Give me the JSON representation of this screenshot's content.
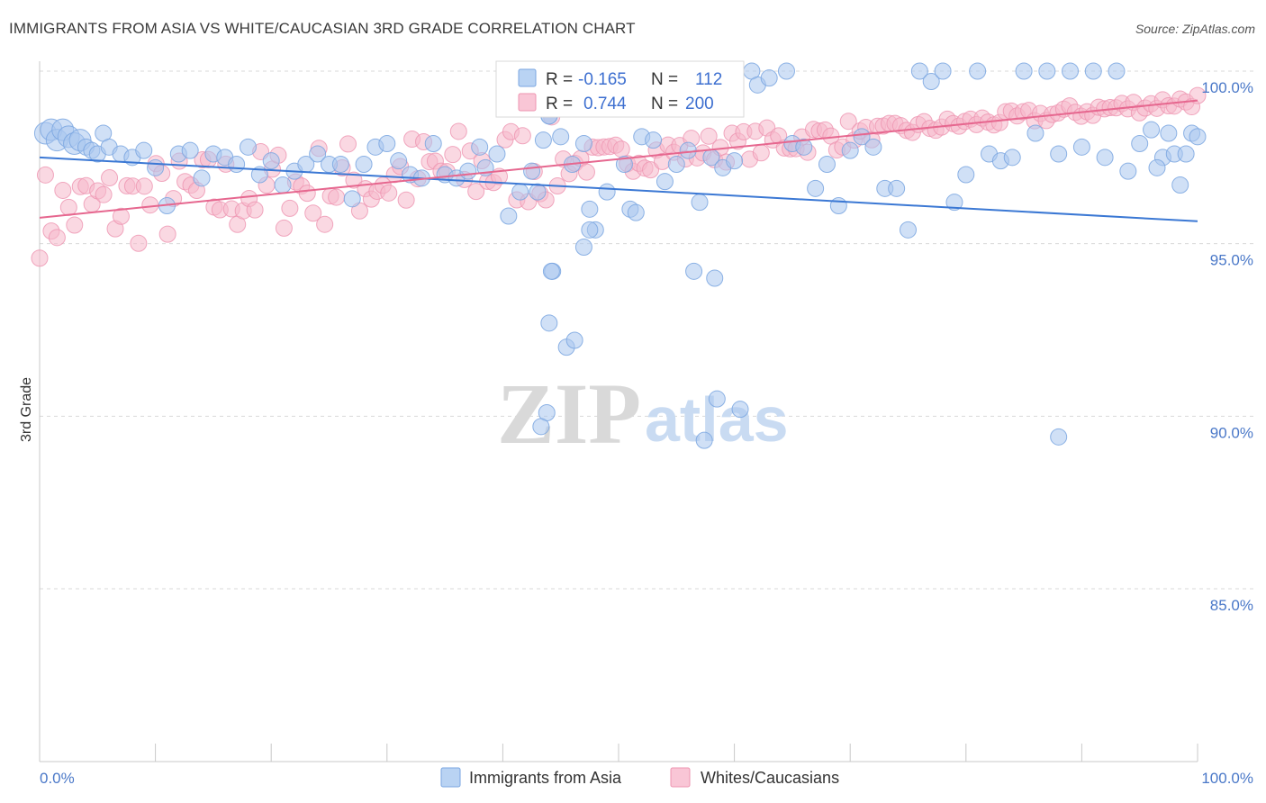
{
  "title": "IMMIGRANTS FROM ASIA VS WHITE/CAUCASIAN 3RD GRADE CORRELATION CHART",
  "source": "Source: ZipAtlas.com",
  "watermark": {
    "zip": "ZIP",
    "atlas": "atlas"
  },
  "colors": {
    "blue_fill": "#a9c7ee",
    "blue_stroke": "#7aa6e0",
    "blue_line": "#3b78d4",
    "pink_fill": "#f6b8cb",
    "pink_stroke": "#ee94b0",
    "pink_line": "#e6678f",
    "grid": "#d9d9d9",
    "axis_text": "#4a78c8"
  },
  "legend_top": {
    "series": [
      {
        "r_label": "R =",
        "r_value": "-0.165",
        "n_label": "N =",
        "n_value": "112"
      },
      {
        "r_label": "R =",
        "r_value": "0.744",
        "n_label": "N =",
        "n_value": "200"
      }
    ]
  },
  "legend_bottom": [
    "Immigrants from Asia",
    "Whites/Caucasians"
  ],
  "chart_data": {
    "type": "scatter",
    "xlabel": "",
    "ylabel": "3rd Grade",
    "xlim": [
      0,
      100
    ],
    "ylim": [
      80.5,
      100.8
    ],
    "x_tick_labels": [
      "0.0%",
      "100.0%"
    ],
    "y_ticks": [
      85,
      90,
      95,
      100
    ],
    "y_tick_labels": [
      "85.0%",
      "90.0%",
      "95.0%",
      "100.0%"
    ],
    "grid": true,
    "series": [
      {
        "name": "Immigrants from Asia",
        "r": -0.165,
        "n": 112,
        "trend": {
          "x": [
            0,
            100
          ],
          "y": [
            97.5,
            95.65
          ]
        },
        "points": [
          [
            0.5,
            98.2
          ],
          [
            1.0,
            98.3
          ],
          [
            1.5,
            98.0
          ],
          [
            2.0,
            98.3
          ],
          [
            2.5,
            98.1
          ],
          [
            3.0,
            97.9
          ],
          [
            3.5,
            98.0
          ],
          [
            4.0,
            97.8
          ],
          [
            4.5,
            97.7
          ],
          [
            5.0,
            97.6
          ],
          [
            5.5,
            98.2
          ],
          [
            6.0,
            97.8
          ],
          [
            7.0,
            97.6
          ],
          [
            8.0,
            97.5
          ],
          [
            9.0,
            97.7
          ],
          [
            10.0,
            97.2
          ],
          [
            11.0,
            96.1
          ],
          [
            12.0,
            97.6
          ],
          [
            13.0,
            97.7
          ],
          [
            14.0,
            96.9
          ],
          [
            15.0,
            97.6
          ],
          [
            16.0,
            97.5
          ],
          [
            17.0,
            97.3
          ],
          [
            18.0,
            97.8
          ],
          [
            19.0,
            97.0
          ],
          [
            20.0,
            97.4
          ],
          [
            21.0,
            96.7
          ],
          [
            22.0,
            97.1
          ],
          [
            23.0,
            97.3
          ],
          [
            24.0,
            97.6
          ],
          [
            25.0,
            97.3
          ],
          [
            26.0,
            97.3
          ],
          [
            27.0,
            96.3
          ],
          [
            28.0,
            97.3
          ],
          [
            29.0,
            97.8
          ],
          [
            30.0,
            97.9
          ],
          [
            31.0,
            97.4
          ],
          [
            32.0,
            97.0
          ],
          [
            33.0,
            96.9
          ],
          [
            34.0,
            97.9
          ],
          [
            35.0,
            97.0
          ],
          [
            36.0,
            96.9
          ],
          [
            37.0,
            97.1
          ],
          [
            38.0,
            97.8
          ],
          [
            38.5,
            97.2
          ],
          [
            39.5,
            97.6
          ],
          [
            40.5,
            95.8
          ],
          [
            41.5,
            96.5
          ],
          [
            42.5,
            97.1
          ],
          [
            43.0,
            96.5
          ],
          [
            43.5,
            98.0
          ],
          [
            44.0,
            98.7
          ],
          [
            45.0,
            98.1
          ],
          [
            46.0,
            97.3
          ],
          [
            47.0,
            97.9
          ],
          [
            47.5,
            96.0
          ],
          [
            48.0,
            95.4
          ],
          [
            49.0,
            96.5
          ],
          [
            50.5,
            97.3
          ],
          [
            51.0,
            96.0
          ],
          [
            52.0,
            98.1
          ],
          [
            53.0,
            98.0
          ],
          [
            54.0,
            96.8
          ],
          [
            55.0,
            97.3
          ],
          [
            56.0,
            97.7
          ],
          [
            57.0,
            96.2
          ],
          [
            58.0,
            97.5
          ],
          [
            59.0,
            97.2
          ],
          [
            60.0,
            97.4
          ],
          [
            61.5,
            100.0
          ],
          [
            62.0,
            99.6
          ],
          [
            63.0,
            99.8
          ],
          [
            64.5,
            100.0
          ],
          [
            65.0,
            97.9
          ],
          [
            66.0,
            97.8
          ],
          [
            67.0,
            96.6
          ],
          [
            68.0,
            97.3
          ],
          [
            69.0,
            96.1
          ],
          [
            70.0,
            97.7
          ],
          [
            71.0,
            98.1
          ],
          [
            72.0,
            97.8
          ],
          [
            73.0,
            96.6
          ],
          [
            74.0,
            96.6
          ],
          [
            75.0,
            95.4
          ],
          [
            76.0,
            100.0
          ],
          [
            77.0,
            99.7
          ],
          [
            78.0,
            100.0
          ],
          [
            79.0,
            96.2
          ],
          [
            80.0,
            97.0
          ],
          [
            81.0,
            100.0
          ],
          [
            82.0,
            97.6
          ],
          [
            83.0,
            97.4
          ],
          [
            84.0,
            97.5
          ],
          [
            85.0,
            100.0
          ],
          [
            86.0,
            98.2
          ],
          [
            87.0,
            100.0
          ],
          [
            88.0,
            97.6
          ],
          [
            89.0,
            100.0
          ],
          [
            90.0,
            97.8
          ],
          [
            91.0,
            100.0
          ],
          [
            92.0,
            97.5
          ],
          [
            93.0,
            100.0
          ],
          [
            94.0,
            97.1
          ],
          [
            95.0,
            97.9
          ],
          [
            96.0,
            98.3
          ],
          [
            97.0,
            97.5
          ],
          [
            98.0,
            97.6
          ],
          [
            99.0,
            97.6
          ],
          [
            99.5,
            98.2
          ],
          [
            100.0,
            98.1
          ],
          [
            96.5,
            97.2
          ],
          [
            97.5,
            98.2
          ],
          [
            98.5,
            96.7
          ]
        ]
      },
      {
        "name": "Whites/Caucasians",
        "r": 0.744,
        "n": 200,
        "trend": {
          "x": [
            0,
            100
          ],
          "y": [
            95.75,
            99.15
          ]
        },
        "points": []
      }
    ]
  }
}
